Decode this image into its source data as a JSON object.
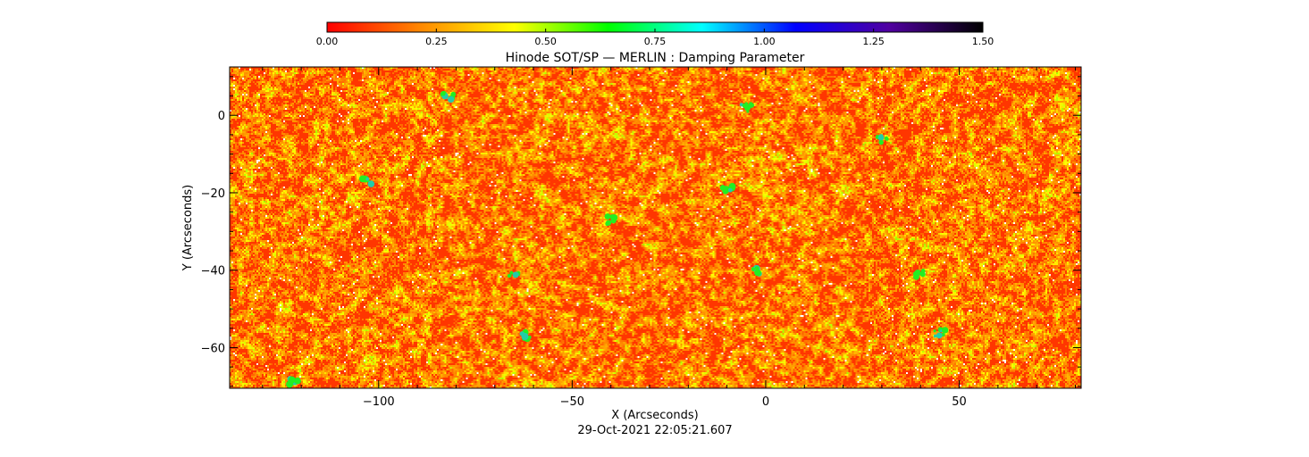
{
  "chart_data": {
    "type": "heatmap",
    "title": "Hinode SOT/SP — MERLIN : Damping Parameter",
    "xlabel": "X (Arcseconds)",
    "ylabel": "Y (Arcseconds)",
    "date_label": "29-Oct-2021 22:05:21.607",
    "xlim": [
      -138.5,
      81.5
    ],
    "ylim": [
      -70.5,
      12.5
    ],
    "x_ticks": [
      -100,
      -50,
      0,
      50
    ],
    "x_tick_labels": [
      "−100",
      "−50",
      "0",
      "50"
    ],
    "y_ticks": [
      0,
      -20,
      -40,
      -60
    ],
    "y_tick_labels": [
      "0",
      "−20",
      "−40",
      "−60"
    ],
    "colorbar": {
      "range": [
        0.0,
        1.5
      ],
      "ticks": [
        0.0,
        0.25,
        0.5,
        0.75,
        1.0,
        1.25,
        1.5
      ],
      "tick_labels": [
        "0.00",
        "0.25",
        "0.50",
        "0.75",
        "1.00",
        "1.25",
        "1.50"
      ],
      "colors": [
        "#ff0000",
        "#ff8800",
        "#ffff00",
        "#00ff00",
        "#00ffff",
        "#0000ff",
        "#5000a0",
        "#000000"
      ]
    },
    "value_distribution": {
      "typical_range": [
        0.0,
        0.35
      ],
      "dominant_value": 0.05,
      "sparse_high_values": [
        0.5,
        0.7
      ],
      "note_white": "gaps"
    },
    "high_value_patches": [
      {
        "x": -82,
        "y": 5
      },
      {
        "x": -103,
        "y": -17
      },
      {
        "x": -65,
        "y": -41
      },
      {
        "x": -62,
        "y": -57
      },
      {
        "x": -10,
        "y": -19
      },
      {
        "x": -5,
        "y": 2
      },
      {
        "x": -3,
        "y": -40
      },
      {
        "x": 40,
        "y": -41
      },
      {
        "x": 45,
        "y": -56
      },
      {
        "x": -122,
        "y": -69
      },
      {
        "x": 30,
        "y": -6
      },
      {
        "x": -40,
        "y": -27
      }
    ]
  }
}
